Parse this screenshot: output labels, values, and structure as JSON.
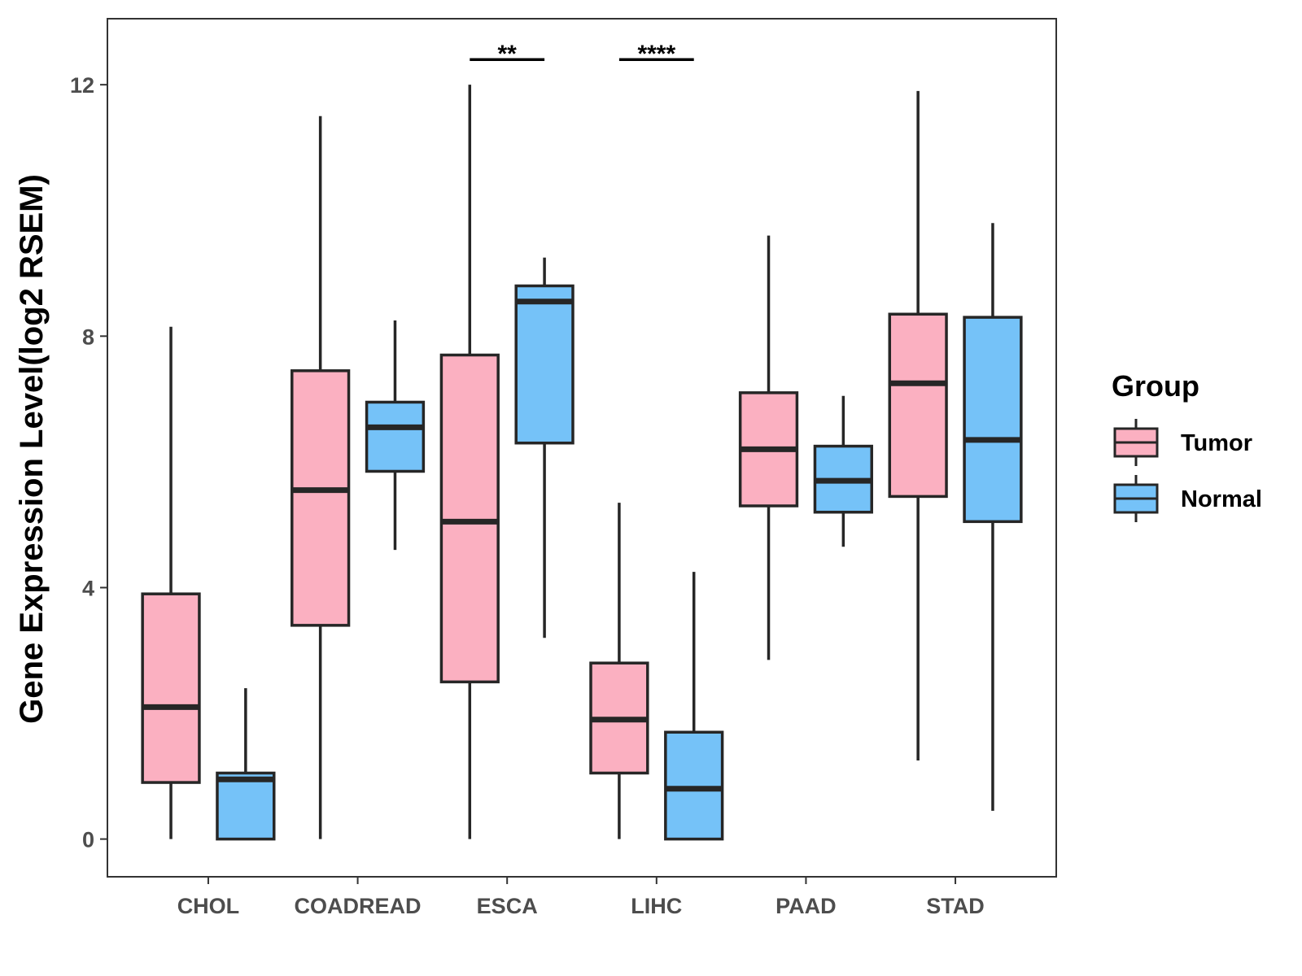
{
  "chart_data": {
    "type": "boxplot",
    "title": "",
    "xlabel": "",
    "ylabel": "Gene Expression Level(log2 RSEM)",
    "ylim": [
      -0.6,
      13.05
    ],
    "yticks": [
      0,
      4,
      8,
      12
    ],
    "grid": false,
    "categories": [
      "CHOL",
      "COADREAD",
      "ESCA",
      "LIHC",
      "PAAD",
      "STAD"
    ],
    "legend": {
      "title": "Group",
      "position": "right",
      "entries": [
        {
          "name": "Tumor",
          "color": "#fbb0c1"
        },
        {
          "name": "Normal",
          "color": "#75c2f8"
        }
      ]
    },
    "series": [
      {
        "name": "Tumor",
        "color": "#fbb0c1",
        "boxes": [
          {
            "category": "CHOL",
            "min": 0,
            "q1": 0.9,
            "median": 2.1,
            "q3": 3.9,
            "max": 8.15
          },
          {
            "category": "COADREAD",
            "min": 0,
            "q1": 3.4,
            "median": 5.55,
            "q3": 7.45,
            "max": 11.5
          },
          {
            "category": "ESCA",
            "min": 0,
            "q1": 2.5,
            "median": 5.05,
            "q3": 7.7,
            "max": 12.0
          },
          {
            "category": "LIHC",
            "min": 0,
            "q1": 1.05,
            "median": 1.9,
            "q3": 2.8,
            "max": 5.35
          },
          {
            "category": "PAAD",
            "min": 2.85,
            "q1": 5.3,
            "median": 6.2,
            "q3": 7.1,
            "max": 9.6
          },
          {
            "category": "STAD",
            "min": 1.25,
            "q1": 5.45,
            "median": 7.25,
            "q3": 8.35,
            "max": 11.9
          }
        ]
      },
      {
        "name": "Normal",
        "color": "#75c2f8",
        "boxes": [
          {
            "category": "CHOL",
            "min": 0,
            "q1": 0,
            "median": 0.95,
            "q3": 1.05,
            "max": 2.4
          },
          {
            "category": "COADREAD",
            "min": 4.6,
            "q1": 5.85,
            "median": 6.55,
            "q3": 6.95,
            "max": 8.25
          },
          {
            "category": "ESCA",
            "min": 3.2,
            "q1": 6.3,
            "median": 8.55,
            "q3": 8.8,
            "max": 9.25
          },
          {
            "category": "LIHC",
            "min": 0,
            "q1": 0,
            "median": 0.8,
            "q3": 1.7,
            "max": 4.25
          },
          {
            "category": "PAAD",
            "min": 4.65,
            "q1": 5.2,
            "median": 5.7,
            "q3": 6.25,
            "max": 7.05
          },
          {
            "category": "STAD",
            "min": 0.45,
            "q1": 5.05,
            "median": 6.35,
            "q3": 8.3,
            "max": 9.8
          }
        ]
      }
    ],
    "annotations": [
      {
        "category": "ESCA",
        "label": "**",
        "y": 12.4
      },
      {
        "category": "LIHC",
        "label": "****",
        "y": 12.4
      }
    ]
  }
}
